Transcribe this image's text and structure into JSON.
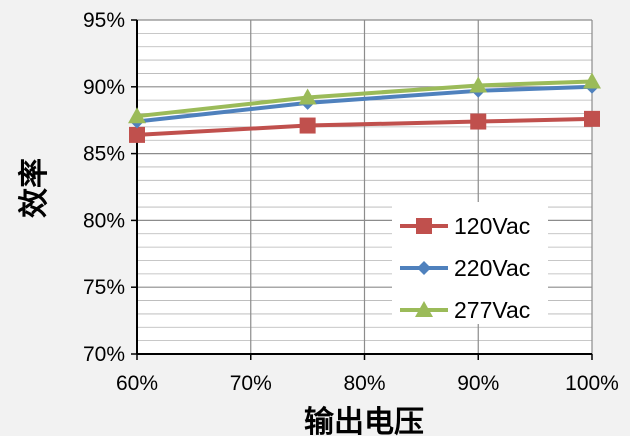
{
  "chart_data": {
    "type": "line",
    "x": [
      "60%",
      "75%",
      "90%",
      "100%"
    ],
    "x_values": [
      60,
      75,
      90,
      100
    ],
    "xlim": [
      60,
      100
    ],
    "x_ticks": [
      60,
      70,
      80,
      90,
      100
    ],
    "x_tick_labels": [
      "60%",
      "70%",
      "80%",
      "90%",
      "100%"
    ],
    "ylim": [
      70,
      95
    ],
    "y_ticks": [
      70,
      75,
      80,
      85,
      90,
      95
    ],
    "y_tick_labels": [
      "70%",
      "75%",
      "80%",
      "85%",
      "90%",
      "95%"
    ],
    "xlabel": "输出电压",
    "ylabel": "效率",
    "grid": true,
    "legend_position": "bottom-right",
    "series": [
      {
        "name": "120Vac",
        "color": "#c0504d",
        "marker": "square",
        "values": [
          86.4,
          87.1,
          87.4,
          87.6
        ]
      },
      {
        "name": "220Vac",
        "color": "#4f81bd",
        "marker": "diamond",
        "values": [
          87.4,
          88.8,
          89.7,
          90.0
        ]
      },
      {
        "name": "277Vac",
        "color": "#9bbb59",
        "marker": "triangle",
        "values": [
          87.8,
          89.2,
          90.1,
          90.4
        ]
      }
    ]
  }
}
